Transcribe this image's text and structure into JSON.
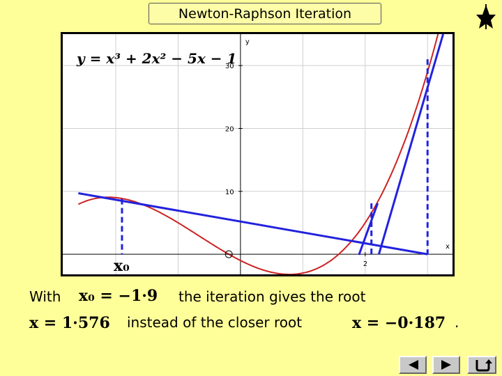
{
  "title": "Newton-Raphson Iteration",
  "equation": "y = x³ + 2x² − 5x − 1",
  "chart_data": {
    "type": "line",
    "function": "y = x^3 + 2x^2 - 5x - 1",
    "xlim": [
      -2.85,
      3.4
    ],
    "ylim": [
      -3.2,
      35
    ],
    "xlabel": "x",
    "ylabel": "y",
    "y_ticks": [
      10,
      20,
      30
    ],
    "x_ticks": [
      2
    ],
    "grid": true,
    "series": [
      {
        "color": "#cc2222",
        "curve": {
          "from": -2.6,
          "to": 3.23
        }
      }
    ],
    "tangents": [
      {
        "from": [
          -2.6,
          9.7
        ],
        "to": [
          3.0,
          0
        ]
      },
      {
        "from": [
          1.9,
          -0.1
        ],
        "to": [
          2.2,
          8.1
        ]
      },
      {
        "from": [
          2.22,
          0.0
        ],
        "to": [
          3.25,
          35.0
        ]
      }
    ],
    "iterates": [
      {
        "x": -1.9,
        "y": 8.8
      },
      {
        "x": 2.1,
        "y": 8.1
      },
      {
        "x": 3.0,
        "y": 31.0
      }
    ],
    "root_marker": {
      "x": -0.187,
      "y": 0
    },
    "x0_label": "x₀"
  },
  "text": {
    "with": "With",
    "x0_value": "x₀ = −1·9",
    "the_iteration": "the  iteration gives the root",
    "root_far": "x = 1·576",
    "instead": "instead of the closer root",
    "root_close": "x = −0·187",
    "period": "."
  },
  "nav": {
    "back_icon": "triangle-left-icon",
    "forward_icon": "triangle-right-icon",
    "return_icon": "return-arrow-icon"
  }
}
